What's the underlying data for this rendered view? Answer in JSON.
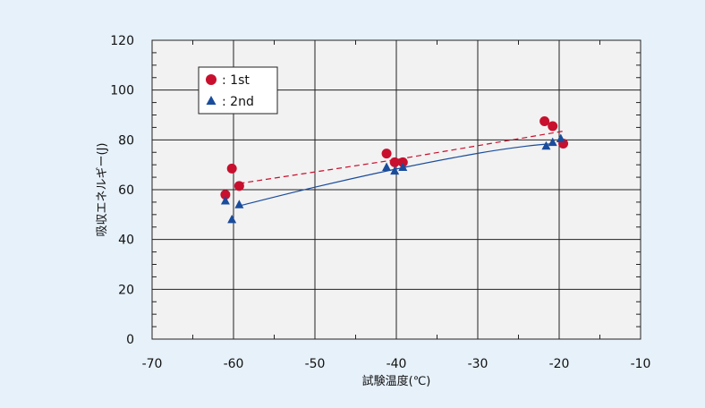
{
  "chart_data": {
    "type": "scatter",
    "xlabel": "試験温度(℃)",
    "ylabel": "吸収エネルギー(J)",
    "xlim": [
      -70,
      -10
    ],
    "ylim": [
      0,
      120
    ],
    "xticks": [
      "-70",
      "-60",
      "-50",
      "-40",
      "-30",
      "-20",
      "-10"
    ],
    "yticks": [
      "0",
      "20",
      "40",
      "60",
      "80",
      "100",
      "120"
    ],
    "grid": true,
    "legend_position": "top-left",
    "series": [
      {
        "name": ": 1st",
        "marker": "circle",
        "color": "#c8102e",
        "points": [
          [
            -61.0,
            58
          ],
          [
            -60.2,
            68.5
          ],
          [
            -59.3,
            61.5
          ],
          [
            -41.2,
            74.5
          ],
          [
            -40.2,
            71
          ],
          [
            -39.2,
            71
          ],
          [
            -21.8,
            87.5
          ],
          [
            -20.8,
            85.5
          ],
          [
            -19.5,
            78.5
          ]
        ],
        "trend": {
          "style": "dashed",
          "points": [
            [
              -59.3,
              62.5
            ],
            [
              -40.2,
              72
            ],
            [
              -19.5,
              83.5
            ]
          ]
        }
      },
      {
        "name": ": 2nd",
        "marker": "triangle",
        "color": "#1a4c9c",
        "points": [
          [
            -61.0,
            55.5
          ],
          [
            -60.2,
            48
          ],
          [
            -59.3,
            54
          ],
          [
            -41.2,
            69
          ],
          [
            -40.2,
            67.5
          ],
          [
            -39.2,
            69
          ],
          [
            -21.6,
            77.5
          ],
          [
            -20.8,
            79
          ],
          [
            -19.8,
            80.5
          ]
        ],
        "trend": {
          "style": "solid",
          "points": [
            [
              -59.3,
              53.5
            ],
            [
              -50,
              61
            ],
            [
              -40,
              68.3
            ],
            [
              -30,
              74.6
            ],
            [
              -24,
              77.5
            ],
            [
              -20.5,
              78.5
            ]
          ]
        }
      }
    ]
  }
}
